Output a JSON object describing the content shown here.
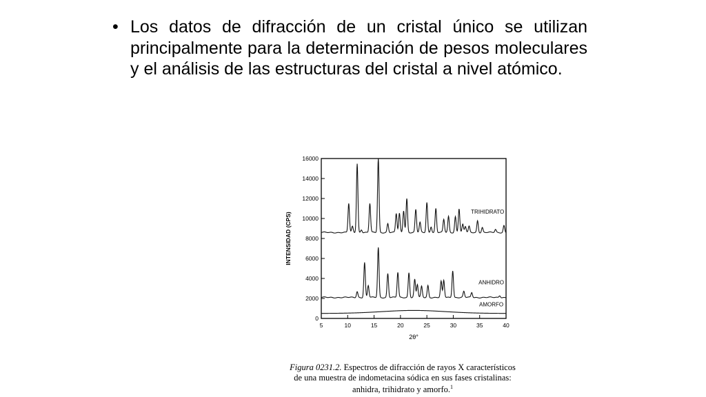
{
  "slide": {
    "bullet_glyph": "•",
    "bullet_text": "Los datos de difracción de un cristal único se utilizan principalmente para la determinación de pesos moleculares y el análisis de las estructuras del cristal a nivel atómico."
  },
  "caption": {
    "figure_label": "Figura 0231.2.",
    "text": "Espectros de difracción de rayos X característicos de una muestra de indometacina sódica en sus fases cristalinas: anhidra, trihidrato y amorfo.",
    "footnote_mark": "1"
  },
  "chart_data": {
    "type": "line",
    "xlabel": "2θ°",
    "ylabel": "INTENSIDAD (CPS)",
    "xlim": [
      5,
      40
    ],
    "ylim": [
      0,
      16000
    ],
    "x_ticks": [
      5,
      10,
      15,
      20,
      25,
      30,
      35,
      40
    ],
    "y_ticks": [
      0,
      2000,
      4000,
      6000,
      8000,
      10000,
      12000,
      14000,
      16000
    ],
    "grid": false,
    "series": [
      {
        "name": "TRIHIDRATO",
        "baseline": 8600,
        "label_position": [
          36.5,
          10500
        ],
        "peaks": [
          [
            10.2,
            11500
          ],
          [
            10.9,
            9200
          ],
          [
            11.8,
            15500
          ],
          [
            12.6,
            8900
          ],
          [
            14.2,
            11500
          ],
          [
            15.8,
            16000
          ],
          [
            17.6,
            9500
          ],
          [
            19.2,
            10500
          ],
          [
            19.8,
            10500
          ],
          [
            20.6,
            10800
          ],
          [
            21.2,
            12000
          ],
          [
            22.9,
            10900
          ],
          [
            23.7,
            9600
          ],
          [
            25.0,
            11600
          ],
          [
            25.8,
            9200
          ],
          [
            26.7,
            11000
          ],
          [
            28.2,
            9900
          ],
          [
            29.1,
            10200
          ],
          [
            30.4,
            10200
          ],
          [
            31.1,
            11000
          ],
          [
            31.8,
            9400
          ],
          [
            32.3,
            9200
          ],
          [
            33.0,
            9200
          ],
          [
            34.6,
            9800
          ],
          [
            35.5,
            9100
          ],
          [
            38.0,
            8900
          ],
          [
            39.6,
            9300
          ]
        ]
      },
      {
        "name": "ANHIDRO",
        "baseline": 2100,
        "label_position": [
          37.2,
          3400
        ],
        "peaks": [
          [
            11.8,
            2700
          ],
          [
            13.2,
            5600
          ],
          [
            13.9,
            3300
          ],
          [
            15.8,
            7100
          ],
          [
            17.6,
            4500
          ],
          [
            19.5,
            4600
          ],
          [
            21.6,
            4600
          ],
          [
            22.7,
            3900
          ],
          [
            23.2,
            3400
          ],
          [
            24.0,
            3200
          ],
          [
            25.2,
            3300
          ],
          [
            27.7,
            3700
          ],
          [
            28.2,
            3800
          ],
          [
            29.9,
            4800
          ],
          [
            32.0,
            2700
          ],
          [
            33.5,
            2600
          ],
          [
            38.8,
            2300
          ]
        ]
      },
      {
        "name": "AMORFO",
        "baseline": 500,
        "label_position": [
          37.2,
          1200
        ],
        "halo_center": 22.5,
        "halo_height": 300
      }
    ]
  }
}
